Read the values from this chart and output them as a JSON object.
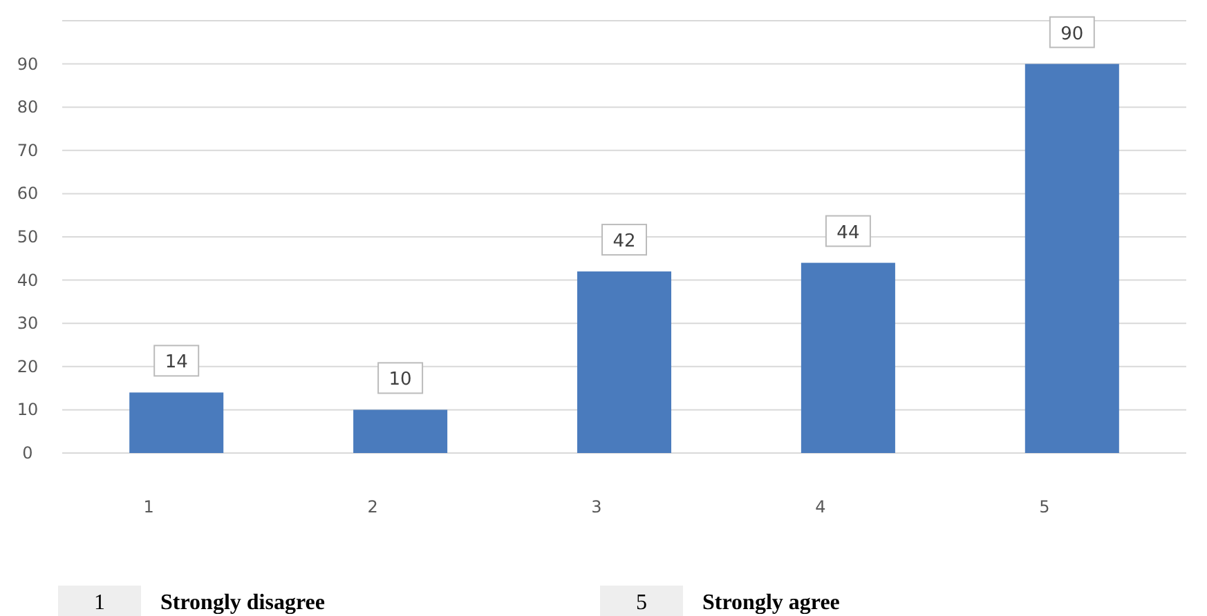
{
  "chart_data": {
    "type": "bar",
    "categories": [
      "1",
      "2",
      "3",
      "4",
      "5"
    ],
    "values": [
      14,
      10,
      42,
      44,
      90
    ],
    "color": "#4a7bbd",
    "ylim": [
      0,
      100
    ],
    "yticks": [
      0,
      10,
      20,
      30,
      40,
      50,
      60,
      70,
      80,
      90,
      {
        "value": 100,
        "label": null
      }
    ],
    "grid": "y",
    "data_labels": true,
    "annotations": [
      "1",
      "Strongly disagree",
      "5",
      "Strongly agree"
    ]
  }
}
